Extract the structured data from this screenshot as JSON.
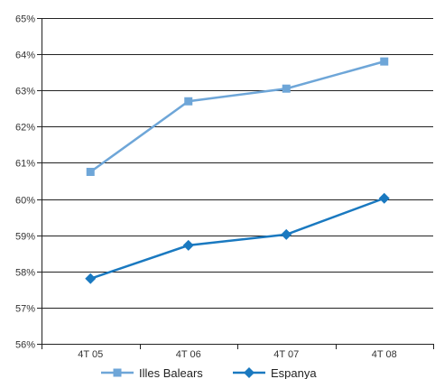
{
  "chart_data": {
    "type": "line",
    "categories": [
      "4T 05",
      "4T 06",
      "4T 07",
      "4T 08"
    ],
    "ylim": [
      56,
      65
    ],
    "ytick_values": [
      56,
      57,
      58,
      59,
      60,
      61,
      62,
      63,
      64,
      65
    ],
    "ytick_labels": [
      "56%",
      "57%",
      "58%",
      "59%",
      "60%",
      "61%",
      "62%",
      "63%",
      "64%",
      "65%"
    ],
    "grid": "horizontal",
    "legend": "bottom",
    "series": [
      {
        "name": "Illes Balears",
        "values": [
          60.75,
          62.7,
          63.05,
          63.8
        ],
        "color": "#6ea6d8",
        "marker": "square"
      },
      {
        "name": "Espanya",
        "values": [
          57.8,
          58.72,
          59.02,
          60.02
        ],
        "color": "#1a79c0",
        "marker": "diamond"
      }
    ]
  }
}
